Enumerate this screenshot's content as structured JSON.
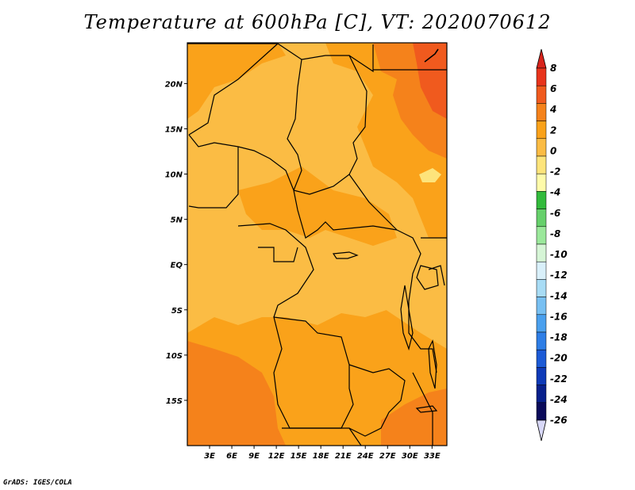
{
  "title": "Temperature at 600hPa [C], VT: 2020070612",
  "credit": "GrADS: IGES/COLA",
  "map": {
    "lat_labels": [
      "20N",
      "15N",
      "10N",
      "5N",
      "EQ",
      "5S",
      "10S",
      "15S"
    ],
    "lat_values": [
      20,
      15,
      10,
      5,
      0,
      -5,
      -10,
      -15
    ],
    "lon_labels": [
      "3E",
      "6E",
      "9E",
      "12E",
      "15E",
      "18E",
      "21E",
      "24E",
      "27E",
      "30E",
      "33E"
    ],
    "lon_values": [
      3,
      6,
      9,
      12,
      15,
      18,
      21,
      24,
      27,
      30,
      33
    ],
    "lon_range": [
      0,
      35
    ],
    "lat_range": [
      -20,
      24.5
    ],
    "colors": {
      "temp_0_2": "#fbbc44",
      "temp_2_4": "#faa21a",
      "temp_4_6": "#f5821b",
      "temp_6_8": "#f05a1e",
      "temp_m2_0": "#fde47b",
      "border": "#000000"
    }
  },
  "colorbar": {
    "labels": [
      "8",
      "6",
      "4",
      "2",
      "0",
      "-2",
      "-4",
      "-6",
      "-8",
      "-10",
      "-12",
      "-14",
      "-16",
      "-18",
      "-20",
      "-22",
      "-24",
      "-26"
    ],
    "colors": [
      "#e8341c",
      "#f05a1e",
      "#f5821b",
      "#faa21a",
      "#fbbc44",
      "#fde47b",
      "#fffbaa",
      "#33bb3c",
      "#66d06b",
      "#9be89b",
      "#d6f5d6",
      "#d9f0fa",
      "#a8dcf5",
      "#78c0f2",
      "#4aa0ee",
      "#2e7ee6",
      "#1c5ad6",
      "#0e3ab8",
      "#08208c",
      "#0a0a5a"
    ],
    "top_triangle_color": "#d8241c",
    "bottom_triangle_color": "#d8d8f8"
  }
}
